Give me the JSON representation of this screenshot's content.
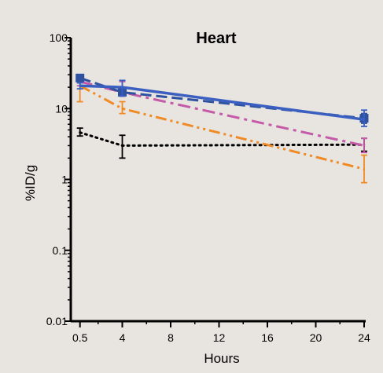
{
  "chart_data": {
    "type": "line",
    "title": "Heart",
    "xlabel": "Hours",
    "ylabel": "%ID/g",
    "xscale": "linear",
    "yscale": "log",
    "xlim": [
      0,
      24
    ],
    "ylim": [
      0.01,
      100
    ],
    "xticks": [
      0.5,
      4,
      8,
      12,
      16,
      20,
      24
    ],
    "xtick_labels": [
      "0.5",
      "4",
      "8",
      "12",
      "16",
      "20",
      "24"
    ],
    "yticks": [
      0.01,
      0.1,
      1,
      10,
      100
    ],
    "ytick_labels": [
      "0.01",
      "0.1",
      "1",
      "10",
      "100"
    ],
    "grid": false,
    "legend": "none",
    "series": [
      {
        "style": "dotted",
        "color": "#000000",
        "marker": "none",
        "x": [
          0.5,
          4,
          24
        ],
        "y": [
          4.6,
          3.0,
          3.1
        ],
        "err_low": [
          4.1,
          2.0,
          2.5
        ],
        "err_high": [
          5.3,
          4.2,
          3.8
        ]
      },
      {
        "style": "dash-dot-dot",
        "color": "#f08a24",
        "marker": "none",
        "x": [
          0.5,
          4,
          24
        ],
        "y": [
          21,
          10,
          1.4
        ],
        "err_low": [
          12.5,
          8.5,
          0.9
        ],
        "err_high": [
          24,
          12.5,
          2.2
        ]
      },
      {
        "style": "dash-dot",
        "color": "#c45aa8",
        "marker": "none",
        "x": [
          0.5,
          4,
          24
        ],
        "y": [
          24,
          17,
          3.0
        ],
        "err_low": [
          21,
          15,
          2.4
        ],
        "err_high": [
          27,
          24,
          3.8
        ]
      },
      {
        "style": "dashed",
        "color": "#2f52a0",
        "marker": "square",
        "x": [
          0.5,
          4,
          24
        ],
        "y": [
          27,
          17,
          7.3
        ],
        "err_low": [
          25,
          15,
          6.2
        ],
        "err_high": [
          30,
          19,
          8.5
        ]
      },
      {
        "style": "solid",
        "color": "#3a5fc0",
        "marker": "none",
        "x": [
          0.5,
          4,
          24
        ],
        "y": [
          21,
          20,
          7.0
        ],
        "err_low": [
          19,
          15,
          5.6
        ],
        "err_high": [
          23,
          25,
          9.5
        ]
      }
    ]
  }
}
